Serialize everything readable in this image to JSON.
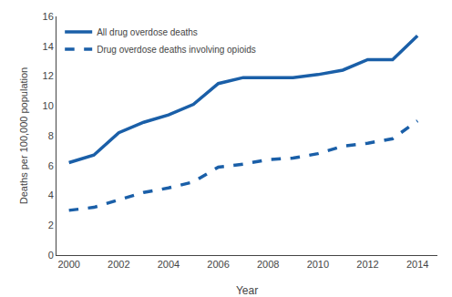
{
  "chart_data": {
    "type": "line",
    "x": [
      2000,
      2001,
      2002,
      2003,
      2004,
      2005,
      2006,
      2007,
      2008,
      2009,
      2010,
      2011,
      2012,
      2013,
      2014
    ],
    "series": [
      {
        "name": "All drug overdose deaths",
        "color": "#1a5fa8",
        "line_style": "solid",
        "values": [
          6.2,
          6.7,
          8.2,
          8.9,
          9.4,
          10.1,
          11.5,
          11.9,
          11.9,
          11.9,
          12.1,
          12.4,
          13.1,
          13.1,
          14.7
        ]
      },
      {
        "name": "Drug overdose deaths involving opioids",
        "color": "#1a5fa8",
        "line_style": "dashed",
        "values": [
          3.0,
          3.2,
          3.7,
          4.2,
          4.5,
          4.9,
          5.9,
          6.1,
          6.4,
          6.5,
          6.8,
          7.3,
          7.5,
          7.8,
          9.0
        ]
      }
    ],
    "xlabel": "Year",
    "ylabel": "Deaths per 100,000 population",
    "xlim": [
      1999.5,
      2014.8
    ],
    "ylim": [
      0,
      16
    ],
    "xticks": [
      2000,
      2002,
      2004,
      2006,
      2008,
      2010,
      2012,
      2014
    ],
    "yticks": [
      0,
      2,
      4,
      6,
      8,
      10,
      12,
      14,
      16
    ],
    "legend": "upper left",
    "grid": false
  }
}
